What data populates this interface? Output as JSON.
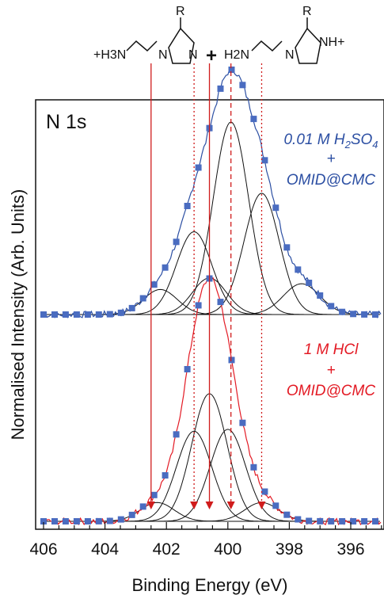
{
  "chart_data": {
    "type": "line",
    "xlabel": "Binding Energy (eV)",
    "ylabel": "Normalised Intensity (Arb. Units)",
    "xlim": [
      406,
      395
    ],
    "x_reversed": true,
    "xticks": [
      406,
      404,
      402,
      400,
      398,
      396
    ],
    "panel_label": "N 1s",
    "molecule": {
      "r_label": "R",
      "left_amine": "+H3N",
      "plus": "+",
      "middle_amine": "H2N",
      "right_nh": "NH+",
      "n_label": "N"
    },
    "panels": [
      {
        "name": "top",
        "annotation": [
          "0.01 M H2SO4",
          "+",
          "OMID@CMC"
        ],
        "color": "#2c4fa3",
        "marker_color": "#4a6cc0",
        "baseline": 0.0,
        "peaks": [
          {
            "center": 402.2,
            "height": 0.13,
            "fwhm": 1.3
          },
          {
            "center": 401.1,
            "height": 0.43,
            "fwhm": 1.35
          },
          {
            "center": 400.6,
            "height": 0.19,
            "fwhm": 1.3
          },
          {
            "center": 399.9,
            "height": 1.0,
            "fwhm": 1.35
          },
          {
            "center": 398.9,
            "height": 0.63,
            "fwhm": 1.35
          },
          {
            "center": 397.6,
            "height": 0.16,
            "fwhm": 1.4
          }
        ],
        "markers": {
          "x_start": 406.0,
          "x_end": 395.0,
          "step": 0.36
        }
      },
      {
        "name": "bottom",
        "annotation": [
          "1 M HCl",
          "+",
          "OMID@CMC"
        ],
        "color": "#e31a24",
        "marker_color": "#4a6cc0",
        "baseline": 0.0,
        "peaks": [
          {
            "center": 402.3,
            "height": 0.1,
            "fwhm": 1.3
          },
          {
            "center": 401.1,
            "height": 0.48,
            "fwhm": 1.35
          },
          {
            "center": 400.6,
            "height": 0.68,
            "fwhm": 1.35
          },
          {
            "center": 400.0,
            "height": 0.49,
            "fwhm": 1.35
          },
          {
            "center": 398.9,
            "height": 0.1,
            "fwhm": 1.3
          }
        ],
        "markers": {
          "x_start": 406.0,
          "x_end": 395.0,
          "step": 0.36
        }
      }
    ],
    "guides": [
      {
        "x": 402.5,
        "style": "solid"
      },
      {
        "x": 401.1,
        "style": "dotted"
      },
      {
        "x": 400.6,
        "style": "solid"
      },
      {
        "x": 399.9,
        "style": "dashed"
      },
      {
        "x": 398.9,
        "style": "dotted"
      }
    ],
    "colors": {
      "top": "#2c4fa3",
      "bottom": "#e31a24",
      "guide": "#d01c1c",
      "component": "#111111"
    }
  }
}
